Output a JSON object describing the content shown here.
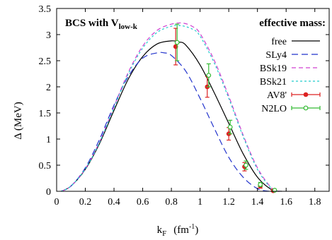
{
  "chart_data": {
    "type": "line",
    "title": "",
    "annotation": {
      "main": "BCS with V",
      "subscript": "low-k"
    },
    "xlabel": {
      "main": "k",
      "subscript": "F",
      "unit_prefix": "(fm",
      "unit_exp": "-1",
      "unit_suffix": ")"
    },
    "ylabel": "Δ  (MeV)",
    "xlim": [
      0,
      1.9
    ],
    "ylim": [
      0,
      3.5
    ],
    "xticks": [
      "0",
      "0.2",
      "0.4",
      "0.6",
      "0.8",
      "1",
      "1.2",
      "1.4",
      "1.6",
      "1.8"
    ],
    "yticks": [
      "0",
      "0.5",
      "1",
      "1.5",
      "2",
      "2.5",
      "3",
      "3.5"
    ],
    "grid": false,
    "legend": {
      "title": "effective mass:",
      "position": "top-right"
    },
    "series": [
      {
        "name": "free",
        "style": "solid",
        "color": "#000000",
        "x": [
          0.03,
          0.1,
          0.2,
          0.3,
          0.4,
          0.5,
          0.6,
          0.7,
          0.8,
          0.85,
          0.9,
          1.0,
          1.1,
          1.2,
          1.3,
          1.4,
          1.5,
          1.57
        ],
        "y": [
          0,
          0.1,
          0.42,
          0.92,
          1.55,
          2.15,
          2.58,
          2.82,
          2.88,
          2.86,
          2.8,
          2.42,
          1.88,
          1.3,
          0.72,
          0.27,
          0.03,
          0
        ]
      },
      {
        "name": "SLy4",
        "style": "dashed",
        "color": "#2233cc",
        "x": [
          0.03,
          0.1,
          0.2,
          0.3,
          0.4,
          0.5,
          0.6,
          0.7,
          0.75,
          0.8,
          0.9,
          1.0,
          1.1,
          1.2,
          1.3,
          1.4,
          1.48
        ],
        "y": [
          0,
          0.1,
          0.45,
          1.0,
          1.65,
          2.2,
          2.55,
          2.65,
          2.65,
          2.6,
          2.3,
          1.78,
          1.2,
          0.65,
          0.27,
          0.05,
          0
        ]
      },
      {
        "name": "BSk19",
        "style": "dashed",
        "color": "#d040d0",
        "x": [
          0.03,
          0.1,
          0.2,
          0.3,
          0.4,
          0.5,
          0.6,
          0.7,
          0.8,
          0.88,
          0.95,
          1.0,
          1.1,
          1.2,
          1.3,
          1.4,
          1.5,
          1.56
        ],
        "y": [
          0,
          0.1,
          0.43,
          0.95,
          1.62,
          2.28,
          2.78,
          3.08,
          3.2,
          3.22,
          3.15,
          3.02,
          2.5,
          1.82,
          1.08,
          0.45,
          0.06,
          0
        ]
      },
      {
        "name": "BSk21",
        "style": "dashed",
        "color": "#22cccc",
        "x": [
          0.03,
          0.1,
          0.2,
          0.3,
          0.4,
          0.5,
          0.6,
          0.7,
          0.8,
          0.87,
          0.95,
          1.0,
          1.1,
          1.2,
          1.3,
          1.4,
          1.5,
          1.56
        ],
        "y": [
          0,
          0.1,
          0.43,
          0.94,
          1.6,
          2.25,
          2.74,
          3.04,
          3.16,
          3.17,
          3.1,
          2.97,
          2.45,
          1.78,
          1.05,
          0.42,
          0.05,
          0
        ]
      },
      {
        "name": "AV8'",
        "style": "points",
        "color": "#dd2222",
        "points": [
          {
            "x": 0.83,
            "y": 2.77,
            "err": 0.35
          },
          {
            "x": 1.05,
            "y": 2.0,
            "err": 0.2
          },
          {
            "x": 1.2,
            "y": 1.1,
            "err": 0.12
          },
          {
            "x": 1.31,
            "y": 0.47,
            "err": 0.08
          },
          {
            "x": 1.42,
            "y": 0.1,
            "err": 0.04
          },
          {
            "x": 1.51,
            "y": 0.01,
            "err": 0.01
          }
        ]
      },
      {
        "name": "N2LO",
        "style": "points",
        "color": "#33bb33",
        "points": [
          {
            "x": 0.84,
            "y": 2.85,
            "err": 0.35
          },
          {
            "x": 1.06,
            "y": 2.22,
            "err": 0.22
          },
          {
            "x": 1.21,
            "y": 1.23,
            "err": 0.13
          },
          {
            "x": 1.32,
            "y": 0.5,
            "err": 0.08
          },
          {
            "x": 1.42,
            "y": 0.13,
            "err": 0.04
          },
          {
            "x": 1.52,
            "y": 0.02,
            "err": 0.01
          }
        ]
      }
    ]
  }
}
